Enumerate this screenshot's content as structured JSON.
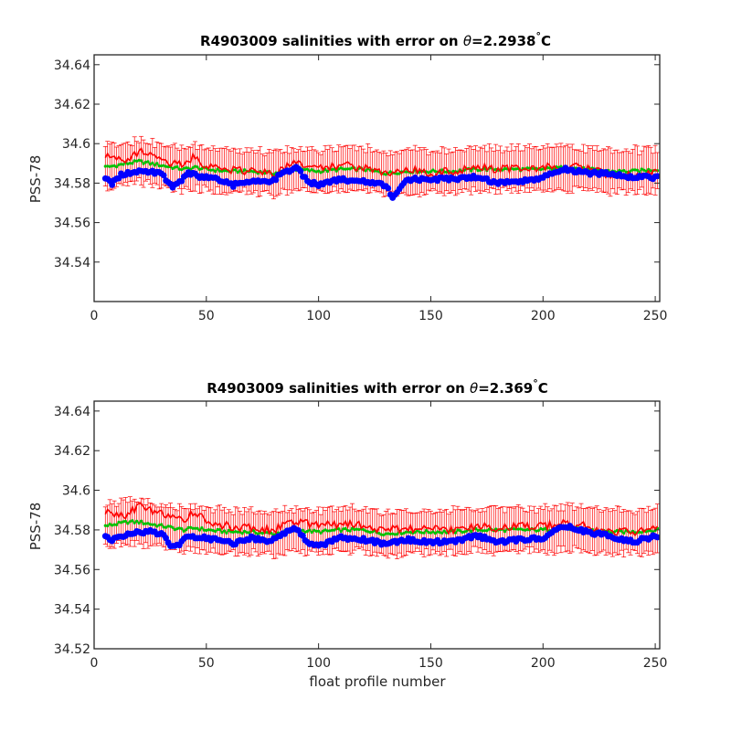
{
  "chart_data": [
    {
      "type": "line",
      "title": {
        "prefix": "R4903009 salinities with error on ",
        "theta": "θ",
        "value": "=2.2938",
        "degree": "°",
        "unit": "C"
      },
      "xlabel": "",
      "ylabel": "PSS-78",
      "xlim": [
        0,
        252
      ],
      "ylim": [
        34.52,
        34.645
      ],
      "xticks": [
        0,
        50,
        100,
        150,
        200,
        250
      ],
      "yticks": [
        34.54,
        34.56,
        34.58,
        34.6,
        34.62,
        34.64
      ],
      "ytick_labels": [
        "34.54",
        "34.56",
        "34.58",
        "34.6",
        "34.62",
        "34.64"
      ],
      "grid": false,
      "x_range": [
        5,
        251
      ],
      "error_bar_halfwidth": 0.011,
      "colors": {
        "red_series": "#ff0000",
        "green_series": "#00c000",
        "blue_series": "#0000ff",
        "error_bars": "#ff0000"
      },
      "series": [
        {
          "color": "red",
          "knots_x": [
            5,
            10,
            15,
            20,
            25,
            30,
            35,
            40,
            45,
            50,
            60,
            70,
            80,
            90,
            100,
            110,
            120,
            130,
            140,
            150,
            160,
            170,
            180,
            190,
            200,
            210,
            220,
            230,
            240,
            251
          ],
          "knots_y": [
            34.594,
            34.593,
            34.592,
            34.596,
            34.594,
            34.592,
            34.59,
            34.589,
            34.594,
            34.588,
            34.587,
            34.586,
            34.585,
            34.591,
            34.587,
            34.589,
            34.588,
            34.585,
            34.587,
            34.585,
            34.586,
            34.588,
            34.587,
            34.588,
            34.588,
            34.589,
            34.587,
            34.584,
            34.584,
            34.586
          ]
        },
        {
          "color": "green",
          "knots_x": [
            5,
            10,
            15,
            20,
            25,
            30,
            35,
            40,
            45,
            50,
            60,
            70,
            80,
            90,
            100,
            110,
            120,
            130,
            140,
            150,
            160,
            170,
            180,
            190,
            200,
            210,
            220,
            230,
            240,
            251
          ],
          "knots_y": [
            34.588,
            34.589,
            34.59,
            34.591,
            34.59,
            34.589,
            34.588,
            34.587,
            34.588,
            34.587,
            34.586,
            34.586,
            34.585,
            34.587,
            34.586,
            34.587,
            34.587,
            34.585,
            34.586,
            34.586,
            34.586,
            34.587,
            34.587,
            34.587,
            34.587,
            34.588,
            34.587,
            34.586,
            34.586,
            34.587
          ]
        },
        {
          "color": "blue",
          "knots_x": [
            5,
            8,
            12,
            16,
            20,
            25,
            30,
            35,
            38,
            42,
            48,
            55,
            62,
            70,
            78,
            84,
            90,
            95,
            100,
            110,
            120,
            130,
            133,
            140,
            150,
            160,
            170,
            180,
            190,
            200,
            210,
            220,
            230,
            240,
            251
          ],
          "knots_y": [
            34.582,
            34.58,
            34.584,
            34.585,
            34.586,
            34.586,
            34.585,
            34.578,
            34.58,
            34.585,
            34.583,
            34.582,
            34.579,
            34.581,
            34.58,
            34.585,
            34.588,
            34.581,
            34.579,
            34.582,
            34.581,
            34.579,
            34.572,
            34.582,
            34.582,
            34.582,
            34.583,
            34.58,
            34.581,
            34.583,
            34.587,
            34.585,
            34.585,
            34.583,
            34.583
          ]
        }
      ]
    },
    {
      "type": "line",
      "title": {
        "prefix": "R4903009 salinities with error on ",
        "theta": "θ",
        "value": "=2.369",
        "degree": "°",
        "unit": "C"
      },
      "xlabel": "float profile number",
      "ylabel": "PSS-78",
      "xlim": [
        0,
        252
      ],
      "ylim": [
        34.52,
        34.645
      ],
      "xticks": [
        0,
        50,
        100,
        150,
        200,
        250
      ],
      "yticks": [
        34.52,
        34.54,
        34.56,
        34.58,
        34.6,
        34.62,
        34.64
      ],
      "ytick_labels": [
        "34.52",
        "34.54",
        "34.56",
        "34.58",
        "34.6",
        "34.62",
        "34.64"
      ],
      "grid": false,
      "x_range": [
        5,
        251
      ],
      "error_bar_halfwidth": 0.011,
      "colors": {
        "red_series": "#ff0000",
        "green_series": "#00c000",
        "blue_series": "#0000ff",
        "error_bars": "#ff0000"
      },
      "series": [
        {
          "color": "red",
          "knots_x": [
            5,
            10,
            15,
            20,
            25,
            30,
            35,
            40,
            45,
            50,
            60,
            70,
            80,
            90,
            100,
            110,
            120,
            130,
            140,
            150,
            160,
            170,
            180,
            190,
            200,
            210,
            220,
            230,
            240,
            251
          ],
          "knots_y": [
            34.589,
            34.587,
            34.588,
            34.592,
            34.59,
            34.588,
            34.586,
            34.585,
            34.589,
            34.584,
            34.582,
            34.581,
            34.58,
            34.585,
            34.582,
            34.583,
            34.582,
            34.58,
            34.581,
            34.58,
            34.58,
            34.582,
            34.581,
            34.582,
            34.582,
            34.583,
            34.582,
            34.579,
            34.579,
            34.58
          ]
        },
        {
          "color": "green",
          "knots_x": [
            5,
            10,
            15,
            20,
            25,
            30,
            35,
            40,
            45,
            50,
            60,
            70,
            80,
            90,
            100,
            110,
            120,
            130,
            140,
            150,
            160,
            170,
            180,
            190,
            200,
            210,
            220,
            230,
            240,
            251
          ],
          "knots_y": [
            34.582,
            34.583,
            34.584,
            34.584,
            34.583,
            34.582,
            34.581,
            34.58,
            34.581,
            34.58,
            34.579,
            34.579,
            34.578,
            34.58,
            34.579,
            34.58,
            34.58,
            34.578,
            34.579,
            34.579,
            34.579,
            34.58,
            34.58,
            34.58,
            34.58,
            34.581,
            34.58,
            34.579,
            34.579,
            34.58
          ]
        },
        {
          "color": "blue",
          "knots_x": [
            5,
            8,
            12,
            16,
            20,
            25,
            30,
            35,
            38,
            42,
            48,
            55,
            62,
            70,
            78,
            84,
            90,
            95,
            100,
            110,
            120,
            130,
            140,
            150,
            160,
            170,
            180,
            190,
            200,
            210,
            220,
            230,
            240,
            251
          ],
          "knots_y": [
            34.577,
            34.575,
            34.576,
            34.578,
            34.579,
            34.579,
            34.578,
            34.571,
            34.573,
            34.577,
            34.576,
            34.575,
            34.573,
            34.576,
            34.574,
            34.578,
            34.581,
            34.574,
            34.572,
            34.576,
            34.575,
            34.573,
            34.575,
            34.574,
            34.574,
            34.577,
            34.574,
            34.575,
            34.576,
            34.582,
            34.579,
            34.577,
            34.574,
            34.577
          ]
        }
      ]
    }
  ]
}
